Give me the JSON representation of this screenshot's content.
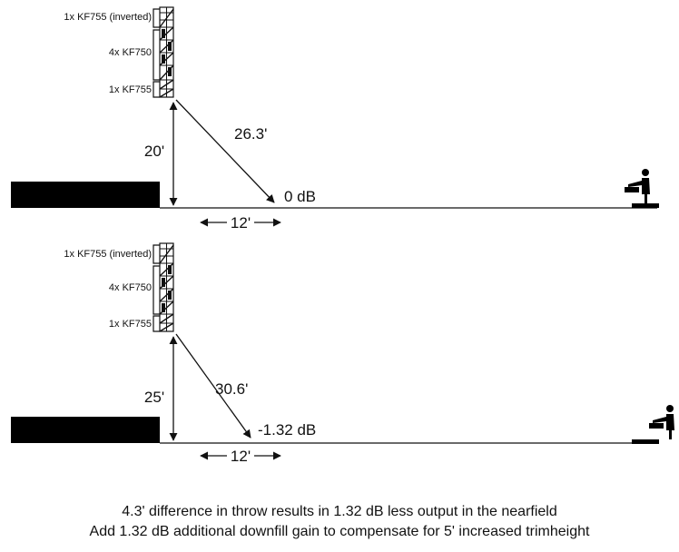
{
  "diagrams": [
    {
      "array_labels": [
        "1x KF755 (inverted)",
        "4x KF750",
        "1x KF755"
      ],
      "height": "20'",
      "throw": "26.3'",
      "level": "0 dB",
      "offset": "12'"
    },
    {
      "array_labels": [
        "1x KF755 (inverted)",
        "4x KF750",
        "1x KF755"
      ],
      "height": "25'",
      "throw": "30.6'",
      "level": "-1.32 dB",
      "offset": "12'"
    }
  ],
  "caption": {
    "line1": "4.3' difference in throw results in 1.32 dB less output in the nearfield",
    "line2": "Add 1.32 dB additional downfill gain to compensate for 5' increased trimheight"
  }
}
